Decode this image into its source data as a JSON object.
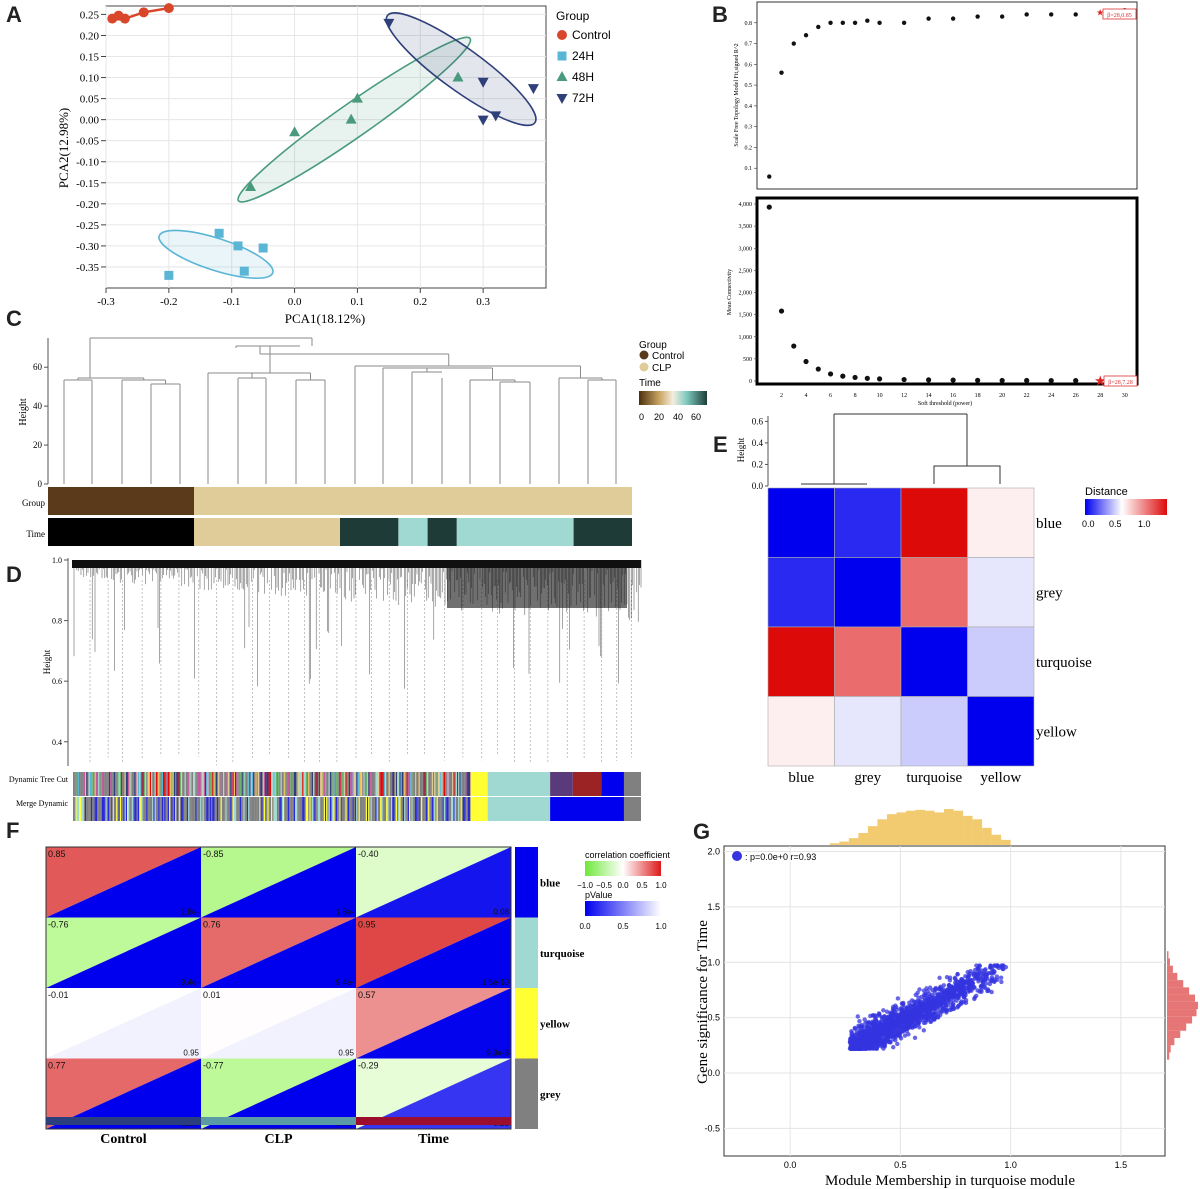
{
  "colors": {
    "control": "#d9472b",
    "h24": "#5bb5d5",
    "h48": "#4a9b7d",
    "h72": "#2f3f7a",
    "brown": "#5a3a1a",
    "beige": "#e0cc98",
    "dark_teal": "#1e3b37",
    "light_teal": "#9fd9d1",
    "black": "#000000",
    "heat_red": "#dd0a0a",
    "heat_blue": "#0000ee",
    "green": "#a9f77a",
    "yellow": "#ffff33",
    "grey": "#808080",
    "scatter_blue": "#3434e0",
    "hist_orange": "#f0c157",
    "hist_red": "#e25e5e"
  },
  "panels": {
    "A": {
      "letter": "A",
      "chart_data": {
        "type": "scatter",
        "title": "",
        "xlabel": "PCA1(18.12%)",
        "ylabel": "PCA2(12.98%)",
        "xlim": [
          -0.3,
          0.4
        ],
        "ylim": [
          -0.4,
          0.27
        ],
        "x_ticks": [
          -0.3,
          -0.2,
          -0.1,
          0.0,
          0.1,
          0.2,
          0.3
        ],
        "y_ticks": [
          0.25,
          0.2,
          0.15,
          0.1,
          0.05,
          0.0,
          -0.05,
          -0.1,
          -0.15,
          -0.2,
          -0.25,
          -0.3,
          -0.35
        ],
        "legend_title": "Group",
        "legend_position": "right",
        "series": [
          {
            "name": "Control",
            "marker": "circle",
            "color_key": "control",
            "ellipse": false,
            "x": [
              -0.29,
              -0.28,
              -0.27,
              -0.24,
              -0.2
            ],
            "y": [
              0.24,
              0.247,
              0.24,
              0.255,
              0.265
            ]
          },
          {
            "name": "24H",
            "marker": "square",
            "color_key": "h24",
            "ellipse": true,
            "x": [
              -0.2,
              -0.12,
              -0.09,
              -0.05,
              -0.08
            ],
            "y": [
              -0.37,
              -0.27,
              -0.3,
              -0.305,
              -0.36
            ]
          },
          {
            "name": "48H",
            "marker": "triangle-up",
            "color_key": "h48",
            "ellipse": true,
            "x": [
              -0.07,
              0.0,
              0.09,
              0.1,
              0.26
            ],
            "y": [
              -0.16,
              -0.03,
              0.0,
              0.05,
              0.1
            ]
          },
          {
            "name": "72H",
            "marker": "triangle-down",
            "color_key": "h72",
            "ellipse": true,
            "x": [
              0.15,
              0.3,
              0.3,
              0.32,
              0.38
            ],
            "y": [
              0.23,
              0.09,
              -0.0,
              0.01,
              0.075
            ]
          }
        ],
        "ellipses": [
          {
            "series": "24H",
            "cx": -0.125,
            "cy": -0.32,
            "rx": 0.095,
            "ry": 0.038,
            "angle": 18
          },
          {
            "series": "48H",
            "cx": 0.095,
            "cy": 0.0,
            "rx": 0.225,
            "ry": 0.04,
            "angle": -35
          },
          {
            "series": "72H",
            "cx": 0.265,
            "cy": 0.12,
            "rx": 0.145,
            "ry": 0.05,
            "angle": 36
          }
        ]
      }
    },
    "B": {
      "letter": "B",
      "chart_data": [
        {
          "type": "scatter",
          "ylabel": "Scale Free Topology Model Fit,signed R^2",
          "ylim": [
            0.0,
            0.9
          ],
          "y_ticks": [
            0.1,
            0.2,
            0.3,
            0.4,
            0.5,
            0.6,
            0.7,
            0.8
          ],
          "xlim": [
            0,
            31
          ],
          "x": [
            1,
            2,
            3,
            4,
            5,
            6,
            7,
            8,
            9,
            10,
            12,
            14,
            16,
            18,
            20,
            22,
            24,
            26,
            28,
            30
          ],
          "y": [
            0.06,
            0.56,
            0.7,
            0.74,
            0.78,
            0.8,
            0.8,
            0.8,
            0.81,
            0.8,
            0.8,
            0.82,
            0.82,
            0.83,
            0.83,
            0.84,
            0.84,
            0.84,
            0.85,
            0.86
          ],
          "highlight": {
            "x": 28,
            "y": 0.85,
            "label": "β=28,0.85"
          }
        },
        {
          "type": "scatter",
          "xlabel": "Soft threshold (power)",
          "ylabel": "Mean Connectivity",
          "ylim": [
            0,
            4000
          ],
          "y_ticks": [
            0,
            500,
            1000,
            1500,
            2000,
            2500,
            3000,
            3500,
            4000
          ],
          "y_tick_labels": [
            "0",
            "500",
            "1,000",
            "1,500",
            "2,000",
            "2,500",
            "3,000",
            "3,500",
            "4,000"
          ],
          "xlim": [
            0,
            31
          ],
          "x_ticks": [
            2,
            4,
            6,
            8,
            10,
            12,
            14,
            16,
            18,
            20,
            22,
            24,
            26,
            28,
            30
          ],
          "x": [
            1,
            2,
            3,
            4,
            5,
            6,
            7,
            8,
            9,
            10,
            12,
            14,
            16,
            18,
            20,
            22,
            24,
            26,
            28,
            30
          ],
          "y": [
            3930,
            1580,
            790,
            440,
            270,
            160,
            110,
            80,
            60,
            48,
            33,
            25,
            20,
            16,
            13,
            11,
            9,
            8,
            7,
            6
          ],
          "highlight": {
            "x": 28,
            "y": 7,
            "label": "β=28,7.28"
          }
        }
      ]
    },
    "C": {
      "letter": "C",
      "chart_data": {
        "type": "dendrogram",
        "ylabel": "Height",
        "y_ticks": [
          0,
          20,
          40,
          60
        ],
        "ylim": [
          0,
          75
        ],
        "legend": {
          "group_title": "Group",
          "group_items": [
            "Control",
            "CLP"
          ],
          "time_title": "Time",
          "time_ticks": [
            "0",
            "20",
            "40",
            "60"
          ]
        },
        "row_labels": [
          "Group",
          "Time"
        ],
        "group_segments": [
          {
            "from": 0,
            "to": 5,
            "color_key": "brown"
          },
          {
            "from": 5,
            "to": 20,
            "color_key": "beige"
          }
        ],
        "time_segments": [
          {
            "from": 0,
            "to": 5,
            "color_key": "black"
          },
          {
            "from": 5,
            "to": 10,
            "color_key": "beige"
          },
          {
            "from": 10,
            "to": 12,
            "color_key": "dark_teal"
          },
          {
            "from": 12,
            "to": 13,
            "color_key": "light_teal"
          },
          {
            "from": 13,
            "to": 14,
            "color_key": "dark_teal"
          },
          {
            "from": 14,
            "to": 18,
            "color_key": "light_teal"
          },
          {
            "from": 18,
            "to": 20,
            "color_key": "dark_teal"
          }
        ]
      }
    },
    "D": {
      "letter": "D",
      "chart_data": {
        "type": "dendrogram",
        "ylabel": "Height",
        "y_ticks": [
          0.4,
          0.6,
          0.8,
          1.0
        ],
        "ylim": [
          0.32,
          1.0
        ],
        "row_labels": [
          "Dynamic Tree Cut",
          "Merge Dynamic"
        ],
        "merge_segments": [
          {
            "from": 0.0,
            "to": 0.7,
            "color_key": "grey"
          },
          {
            "from": 0.7,
            "to": 0.73,
            "color_key": "yellow"
          },
          {
            "from": 0.73,
            "to": 0.84,
            "color_key": "light_teal"
          },
          {
            "from": 0.84,
            "to": 0.97,
            "color_key": "heat_blue"
          },
          {
            "from": 0.97,
            "to": 1.0,
            "color_key": "grey"
          }
        ]
      }
    },
    "E": {
      "letter": "E",
      "chart_data": {
        "type": "heatmap",
        "legend_title": "Distance",
        "legend_ticks": [
          "0.0",
          "0.5",
          "1.0"
        ],
        "dendro_ylabel": "Height",
        "dendro_ticks": [
          0.0,
          0.2,
          0.4,
          0.6
        ],
        "rows": [
          "blue",
          "grey",
          "turquoise",
          "yellow"
        ],
        "cols": [
          "blue",
          "grey",
          "turquoise",
          "yellow"
        ],
        "values": [
          [
            0.0,
            0.08,
            1.25,
            0.55
          ],
          [
            0.08,
            0.0,
            0.95,
            0.45
          ],
          [
            1.25,
            0.95,
            0.0,
            0.4
          ],
          [
            0.55,
            0.45,
            0.4,
            0.0
          ]
        ]
      }
    },
    "F": {
      "letter": "F",
      "chart_data": {
        "type": "heatmap",
        "cols": [
          "Control",
          "CLP",
          "Time"
        ],
        "rows": [
          "blue",
          "turquoise",
          "yellow",
          "grey"
        ],
        "module_color_keys": [
          "heat_blue",
          "light_teal",
          "yellow",
          "grey"
        ],
        "col_bar_colors": [
          "#2b3f7e",
          "#5a9ba6",
          "#9b0e2e"
        ],
        "legend1_title": "correlation coefficient",
        "legend1_ticks": [
          "−1.0",
          "−0.5",
          "0.0",
          "0.5",
          "1.0"
        ],
        "legend2_title": "pValue",
        "legend2_ticks": [
          "0.0",
          "0.5",
          "1.0"
        ],
        "corr": [
          [
            0.85,
            -0.85,
            -0.4
          ],
          [
            -0.76,
            0.76,
            0.95
          ],
          [
            -0.01,
            0.01,
            0.57
          ],
          [
            0.77,
            -0.77,
            -0.29
          ]
        ],
        "corr_labels": [
          [
            "0.85",
            "-0.85",
            "-0.40"
          ],
          [
            "-0.76",
            "0.76",
            "0.95"
          ],
          [
            "-0.01",
            "0.01",
            "0.57"
          ],
          [
            "0.77",
            "-0.77",
            "-0.29"
          ]
        ],
        "pvalue_labels": [
          [
            "1.8e-",
            "1.8e-",
            "0.08"
          ],
          [
            "9.4e-",
            "9.4e-",
            "1.5e-10"
          ],
          [
            "0.95",
            "0.95",
            "9.3e-3"
          ],
          [
            "8.6e-",
            "8.6e-",
            "0.21"
          ]
        ],
        "pvalues": [
          [
            0.0,
            0.0,
            0.08
          ],
          [
            0.0,
            0.0,
            0.0
          ],
          [
            0.95,
            0.95,
            0.01
          ],
          [
            0.0,
            0.0,
            0.21
          ]
        ]
      }
    },
    "G": {
      "letter": "G",
      "chart_data": {
        "type": "scatter",
        "xlabel": "Module Membership in turquoise module",
        "ylabel": "Gene significance for Time",
        "xlim": [
          -0.3,
          1.7
        ],
        "ylim": [
          -0.75,
          2.05
        ],
        "x_ticks": [
          0.0,
          0.5,
          1.0,
          1.5
        ],
        "y_ticks": [
          -0.5,
          0.0,
          0.5,
          1.0,
          1.5,
          2.0
        ],
        "legend_label": ": p=0.0e+0 r=0.93",
        "cloud": {
          "x_range": [
            0.27,
            0.98
          ],
          "y_range": [
            0.22,
            0.97
          ],
          "r": 0.93
        },
        "top_hist": [
          2,
          4,
          8,
          14,
          22,
          30,
          36,
          38,
          40,
          41,
          40,
          38,
          42,
          40,
          34,
          30,
          20,
          12,
          6
        ],
        "right_hist": [
          2,
          4,
          8,
          14,
          22,
          30,
          38,
          42,
          40,
          34,
          26,
          18,
          10,
          5,
          3
        ]
      }
    }
  }
}
